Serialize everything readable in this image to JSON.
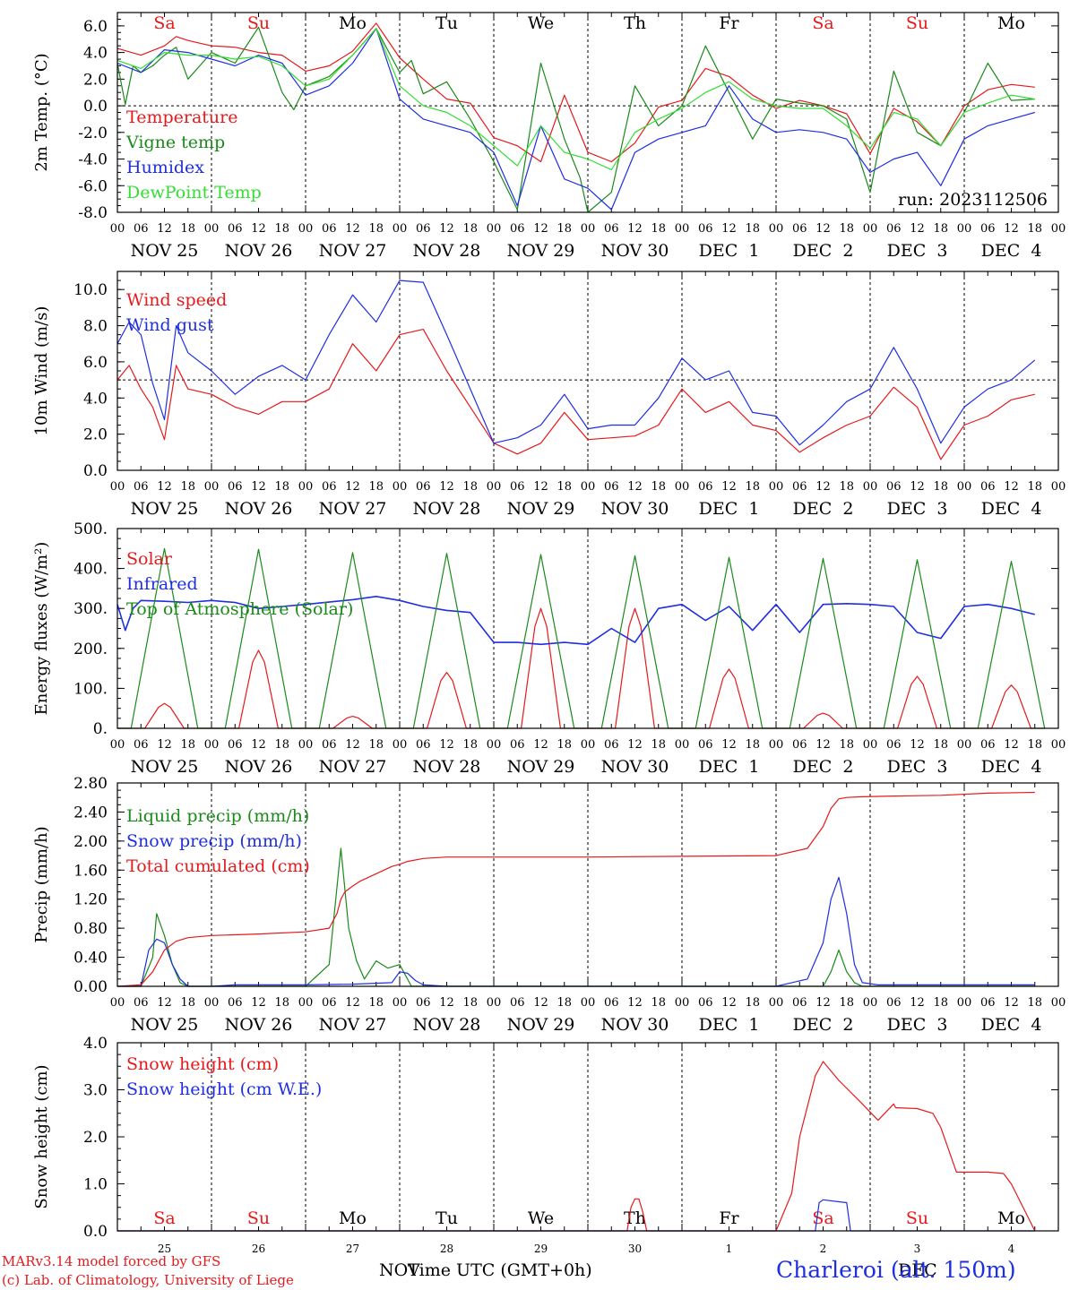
{
  "colors": {
    "red": "#e41a1c",
    "darkgreen": "#1a8a1a",
    "blue": "#1f2fe0",
    "lightgreen": "#33dd33",
    "purple": "#7a3a9a"
  },
  "days": [
    "NOV 25",
    "NOV 26",
    "NOV 27",
    "NOV 28",
    "NOV 29",
    "NOV 30",
    "DEC  1",
    "DEC  2",
    "DEC  3",
    "DEC  4"
  ],
  "weekdays": [
    "Sa",
    "Su",
    "Mo",
    "Tu",
    "We",
    "Th",
    "Fr",
    "Sa",
    "Su",
    "Mo"
  ],
  "weekday_colors": [
    "red",
    "red",
    "black",
    "black",
    "black",
    "black",
    "black",
    "red",
    "red",
    "black"
  ],
  "hour_ticks": [
    "00",
    "06",
    "12",
    "18"
  ],
  "day_numbers": [
    "25",
    "26",
    "27",
    "28",
    "29",
    "30",
    "1",
    "2",
    "3",
    "4"
  ],
  "bottom": {
    "credit_line1": "MARv3.14 model forced by GFS",
    "credit_line2": "(c) Lab. of Climatology, University of Liege",
    "month_left": "NOV",
    "month_right": "DEC",
    "axis_title": "Time UTC (GMT+0h)",
    "station": "Charleroi (alt. 150m)"
  },
  "chart_data": [
    {
      "type": "line",
      "ylabel": "2m Temp. (°C)",
      "ylim": [
        -8,
        7
      ],
      "yticks": [
        "6.0",
        "4.0",
        "2.0",
        "0.0",
        "-2.0",
        "-4.0",
        "-6.0",
        "-8.0"
      ],
      "ytick_values": [
        6,
        4,
        2,
        0,
        -2,
        -4,
        -6,
        -8
      ],
      "reference_line": 0,
      "annotation": "run: 2023112506",
      "legend_placement": "top-left",
      "x_unit": "hours since NOV 25 00 UTC",
      "series": [
        {
          "name": "Temperature",
          "color": "red",
          "x": [
            0,
            6,
            12,
            15,
            18,
            24,
            30,
            36,
            42,
            48,
            54,
            60,
            66,
            72,
            78,
            84,
            90,
            96,
            102,
            108,
            114,
            120,
            126,
            132,
            138,
            144,
            150,
            156,
            162,
            168,
            174,
            180,
            186,
            192,
            198,
            204,
            210,
            216,
            222,
            228,
            234
          ],
          "y": [
            4.3,
            3.8,
            4.5,
            5.2,
            4.9,
            4.5,
            4.4,
            4.0,
            3.8,
            2.6,
            3.0,
            4.1,
            6.2,
            3.6,
            2.0,
            0.5,
            0.2,
            -2.4,
            -3.0,
            -4.2,
            0.8,
            -3.5,
            -4.2,
            -2.8,
            -0.1,
            0.4,
            2.8,
            2.2,
            0.8,
            -0.2,
            0.4,
            0.0,
            -0.6,
            -3.6,
            -0.2,
            -1.2,
            -3.0,
            0.0,
            1.2,
            1.6,
            1.4
          ]
        },
        {
          "name": "Vigne temp",
          "color": "darkgreen",
          "x": [
            0,
            2,
            4,
            6,
            9,
            12,
            15,
            18,
            24,
            30,
            36,
            42,
            45,
            48,
            54,
            60,
            66,
            72,
            75,
            78,
            84,
            90,
            96,
            102,
            108,
            114,
            118,
            120,
            126,
            132,
            138,
            144,
            150,
            156,
            162,
            168,
            174,
            180,
            186,
            192,
            198,
            204,
            210,
            216,
            222,
            228,
            234
          ],
          "y": [
            3.2,
            0.1,
            3.0,
            2.5,
            3.0,
            3.8,
            4.4,
            2.0,
            4.0,
            3.2,
            5.9,
            1.0,
            -0.3,
            1.5,
            2.2,
            3.8,
            5.8,
            2.5,
            3.4,
            0.9,
            1.8,
            -1.0,
            -4.2,
            -7.8,
            3.2,
            -2.5,
            -5.4,
            -8.0,
            -6.5,
            1.5,
            -1.5,
            0.0,
            4.5,
            1.0,
            -2.5,
            0.5,
            0.2,
            0.0,
            -1.0,
            -6.5,
            2.6,
            -2.0,
            -3.0,
            -0.5,
            3.2,
            0.4,
            0.5
          ]
        },
        {
          "name": "Humidex",
          "color": "blue",
          "x": [
            0,
            6,
            12,
            18,
            24,
            30,
            36,
            42,
            48,
            54,
            60,
            66,
            72,
            78,
            84,
            90,
            96,
            102,
            108,
            114,
            120,
            126,
            132,
            138,
            144,
            150,
            156,
            162,
            168,
            174,
            180,
            186,
            192,
            198,
            204,
            210,
            216,
            222,
            228,
            234
          ],
          "y": [
            3.2,
            2.5,
            4.2,
            4.0,
            3.5,
            3.0,
            3.8,
            3.2,
            0.8,
            1.5,
            3.2,
            5.8,
            0.5,
            -1.0,
            -1.5,
            -2.0,
            -3.5,
            -7.5,
            -1.5,
            -5.5,
            -6.2,
            -7.8,
            -3.5,
            -2.5,
            -2.0,
            -1.5,
            1.5,
            -1.0,
            -2.0,
            -1.8,
            -2.0,
            -2.5,
            -5.0,
            -4.0,
            -3.5,
            -6.0,
            -2.5,
            -1.5,
            -1.0,
            -0.5
          ]
        },
        {
          "name": "DewPoint Temp",
          "color": "lightgreen",
          "x": [
            0,
            6,
            12,
            18,
            24,
            30,
            36,
            42,
            48,
            54,
            60,
            66,
            72,
            78,
            84,
            90,
            96,
            102,
            108,
            114,
            120,
            126,
            132,
            138,
            144,
            150,
            156,
            162,
            168,
            174,
            180,
            186,
            192,
            198,
            204,
            210,
            216,
            222,
            228,
            234
          ],
          "y": [
            3.4,
            2.8,
            4.0,
            3.8,
            3.8,
            3.5,
            3.7,
            3.0,
            1.5,
            2.0,
            3.8,
            5.8,
            1.5,
            0.0,
            -0.5,
            -1.5,
            -3.0,
            -4.5,
            -1.5,
            -3.5,
            -4.0,
            -4.8,
            -2.0,
            -1.0,
            -0.2,
            1.0,
            1.8,
            0.5,
            0.0,
            -0.2,
            -0.2,
            -1.5,
            -3.2,
            -0.5,
            -1.0,
            -3.0,
            -0.5,
            0.2,
            0.8,
            0.5
          ]
        }
      ]
    },
    {
      "type": "line",
      "ylabel": "10m Wind (m/s)",
      "ylim": [
        0,
        11
      ],
      "yticks": [
        "10.0",
        "8.0",
        "6.0",
        "4.0",
        "2.0",
        "0.0"
      ],
      "ytick_values": [
        10,
        8,
        6,
        4,
        2,
        0
      ],
      "reference_line": 5,
      "legend_placement": "top-left",
      "series": [
        {
          "name": "Wind speed",
          "color": "red",
          "x": [
            0,
            3,
            6,
            9,
            12,
            15,
            18,
            24,
            30,
            36,
            42,
            48,
            54,
            60,
            66,
            72,
            78,
            84,
            90,
            96,
            102,
            108,
            114,
            120,
            126,
            132,
            138,
            144,
            150,
            156,
            162,
            168,
            174,
            180,
            186,
            192,
            198,
            204,
            210,
            216,
            222,
            228,
            234
          ],
          "y": [
            5.0,
            5.8,
            4.5,
            3.5,
            1.7,
            5.8,
            4.5,
            4.2,
            3.5,
            3.1,
            3.8,
            3.8,
            4.5,
            7.0,
            5.5,
            7.5,
            7.8,
            5.5,
            3.5,
            1.5,
            0.9,
            1.5,
            3.2,
            1.7,
            1.8,
            1.9,
            2.5,
            4.5,
            3.2,
            3.8,
            2.5,
            2.2,
            1.0,
            1.8,
            2.5,
            3.0,
            4.6,
            3.5,
            0.6,
            2.5,
            3.0,
            3.9,
            4.2
          ]
        },
        {
          "name": "Wind gust",
          "color": "blue",
          "x": [
            0,
            3,
            6,
            9,
            12,
            15,
            18,
            24,
            30,
            36,
            42,
            48,
            54,
            60,
            66,
            72,
            78,
            84,
            90,
            96,
            102,
            108,
            114,
            120,
            126,
            132,
            138,
            144,
            150,
            156,
            162,
            168,
            174,
            180,
            186,
            192,
            198,
            204,
            210,
            216,
            222,
            228,
            234
          ],
          "y": [
            7.0,
            8.2,
            7.5,
            4.8,
            2.8,
            8.0,
            6.5,
            5.5,
            4.2,
            5.2,
            5.8,
            5.0,
            7.5,
            9.7,
            8.2,
            10.5,
            10.4,
            7.5,
            4.5,
            1.5,
            1.8,
            2.5,
            4.2,
            2.3,
            2.5,
            2.5,
            4.0,
            6.2,
            5.0,
            5.5,
            3.2,
            3.0,
            1.4,
            2.5,
            3.8,
            4.5,
            6.8,
            4.5,
            1.5,
            3.5,
            4.5,
            5.0,
            6.1
          ]
        }
      ]
    },
    {
      "type": "line",
      "ylabel": "Energy fluxes (W/m²)",
      "ylim": [
        0,
        500
      ],
      "yticks": [
        "500.",
        "400.",
        "300.",
        "200.",
        "100.",
        "0."
      ],
      "ytick_values": [
        500,
        400,
        300,
        200,
        100,
        0
      ],
      "legend_placement": "top-left",
      "series": [
        {
          "name": "Solar",
          "color": "red",
          "solar_peaks": [
            62,
            195,
            30,
            140,
            300,
            300,
            148,
            38,
            130,
            108
          ]
        },
        {
          "name": "Infrared",
          "color": "blue",
          "x": [
            0,
            2,
            4,
            6,
            12,
            18,
            24,
            30,
            36,
            42,
            48,
            60,
            66,
            72,
            78,
            84,
            90,
            96,
            102,
            108,
            114,
            120,
            126,
            132,
            138,
            144,
            150,
            156,
            162,
            168,
            174,
            180,
            186,
            192,
            198,
            204,
            210,
            216,
            222,
            228,
            234
          ],
          "y": [
            310,
            245,
            300,
            320,
            318,
            315,
            320,
            315,
            300,
            305,
            310,
            322,
            330,
            320,
            305,
            295,
            290,
            215,
            215,
            210,
            215,
            210,
            250,
            215,
            300,
            310,
            270,
            305,
            245,
            310,
            240,
            310,
            312,
            310,
            305,
            240,
            225,
            305,
            310,
            300,
            285
          ]
        },
        {
          "name": "Top of Atmosphere (Solar)",
          "color": "darkgreen",
          "toa_peaks": [
            450,
            448,
            440,
            438,
            435,
            432,
            428,
            425,
            422,
            418
          ]
        }
      ]
    },
    {
      "type": "line",
      "ylabel": "Precip (mm/h)",
      "ylim": [
        0,
        2.8
      ],
      "yticks": [
        "2.80",
        "2.40",
        "2.00",
        "1.60",
        "1.20",
        "0.80",
        "0.40",
        "0.00"
      ],
      "ytick_values": [
        2.8,
        2.4,
        2.0,
        1.6,
        1.2,
        0.8,
        0.4,
        0.0
      ],
      "legend_placement": "top-left",
      "series": [
        {
          "name": "Liquid precip (mm/h)",
          "color": "darkgreen",
          "x": [
            0,
            6,
            9,
            10,
            12,
            14,
            16,
            18,
            24,
            48,
            54,
            57,
            59,
            61,
            63,
            66,
            69,
            72,
            75,
            78,
            84,
            96,
            168,
            180,
            182,
            184,
            186,
            188,
            190,
            234
          ],
          "y": [
            0,
            0,
            0.4,
            1.0,
            0.7,
            0.3,
            0.05,
            0,
            0,
            0,
            0.3,
            1.9,
            0.8,
            0.35,
            0.1,
            0.35,
            0.25,
            0.3,
            0,
            0,
            0,
            0,
            0,
            0,
            0.2,
            0.5,
            0.2,
            0.05,
            0,
            0
          ]
        },
        {
          "name": "Snow precip (mm/h)",
          "color": "blue",
          "x": [
            0,
            6,
            8,
            10,
            12,
            14,
            16,
            18,
            24,
            30,
            36,
            48,
            60,
            70,
            72,
            74,
            76,
            78,
            84,
            168,
            176,
            180,
            182,
            184,
            186,
            188,
            190,
            194,
            234
          ],
          "y": [
            0,
            0,
            0.5,
            0.65,
            0.6,
            0.3,
            0.1,
            0,
            0,
            0.02,
            0.02,
            0.02,
            0.03,
            0.05,
            0.2,
            0.18,
            0.08,
            0.02,
            0,
            0,
            0.1,
            0.6,
            1.2,
            1.5,
            1.0,
            0.3,
            0.05,
            0.02,
            0.02
          ]
        },
        {
          "name": "Total cumulated (cm)",
          "color": "red",
          "x": [
            0,
            6,
            9,
            12,
            15,
            18,
            24,
            36,
            48,
            54,
            56,
            57,
            58,
            60,
            62,
            64,
            66,
            68,
            70,
            72,
            74,
            78,
            84,
            96,
            120,
            144,
            168,
            176,
            180,
            182,
            184,
            186,
            190,
            198,
            210,
            222,
            234
          ],
          "y": [
            0,
            0.02,
            0.2,
            0.5,
            0.62,
            0.67,
            0.7,
            0.72,
            0.75,
            0.8,
            1.0,
            1.2,
            1.3,
            1.38,
            1.45,
            1.5,
            1.55,
            1.6,
            1.65,
            1.68,
            1.72,
            1.76,
            1.78,
            1.78,
            1.78,
            1.79,
            1.8,
            1.9,
            2.2,
            2.45,
            2.58,
            2.6,
            2.61,
            2.62,
            2.63,
            2.66,
            2.67
          ]
        }
      ]
    },
    {
      "type": "line",
      "ylabel": "Snow height (cm)",
      "ylim": [
        0,
        4
      ],
      "yticks": [
        "4.0",
        "3.0",
        "2.0",
        "1.0",
        "0.0"
      ],
      "ytick_values": [
        4,
        3,
        2,
        1,
        0
      ],
      "legend_placement": "top-left",
      "series": [
        {
          "name": "Snow height (cm)",
          "color": "red",
          "x": [
            0,
            130,
            131,
            132,
            133,
            134,
            135,
            168,
            172,
            174,
            178,
            180,
            184,
            190,
            194,
            198,
            198.5,
            204,
            208,
            210,
            214,
            222,
            226,
            228,
            234
          ],
          "y": [
            0,
            0,
            0.5,
            0.68,
            0.68,
            0.4,
            0,
            0,
            0.8,
            2.0,
            3.3,
            3.6,
            3.2,
            2.7,
            2.35,
            2.7,
            2.62,
            2.6,
            2.5,
            2.2,
            1.25,
            1.25,
            1.22,
            1.0,
            0
          ]
        },
        {
          "name": "Snow height (cm W.E.)",
          "color": "blue",
          "x": [
            0,
            178,
            179,
            180,
            184,
            186,
            187,
            234
          ],
          "y": [
            0,
            0,
            0.6,
            0.66,
            0.62,
            0.6,
            0,
            0
          ]
        }
      ]
    }
  ]
}
